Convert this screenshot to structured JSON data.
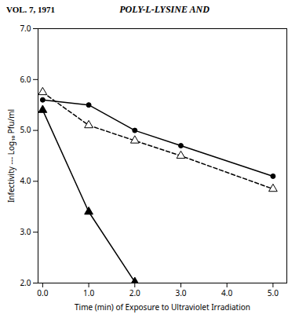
{
  "chart_data": {
    "type": "line",
    "title": "VOL. 7, 1971",
    "subtitle": "POLY-L-LYSINE AND",
    "xlabel": "Time (min) of Exposure to Ultraviolet Irradiation",
    "ylabel": "Infectivity --- Log₁₀ Pfu/ml",
    "series": [
      {
        "x": [
          0,
          1,
          2,
          3,
          5
        ],
        "values": [
          5.6,
          5.5,
          5.0,
          4.7,
          4.1
        ],
        "color": "black",
        "marker": "circle",
        "line_style": "solid"
      },
      {
        "x": [
          0,
          1,
          2,
          3,
          5
        ],
        "values": [
          5.75,
          5.1,
          4.8,
          4.5,
          3.85
        ],
        "color": "black",
        "marker": "triangle-open",
        "line_style": "dashed"
      },
      {
        "x": [
          0,
          1,
          2
        ],
        "values": [
          5.4,
          3.4,
          2.02
        ],
        "color": "black",
        "marker": "triangle",
        "line_style": "solid"
      }
    ],
    "xlim": [
      -0.1,
      5.3
    ],
    "ylim": [
      2,
      7
    ],
    "xticks": [
      0,
      1,
      2,
      3,
      4,
      5
    ],
    "yticks": [
      2,
      3,
      4,
      5,
      6,
      7
    ],
    "grid": false
  }
}
